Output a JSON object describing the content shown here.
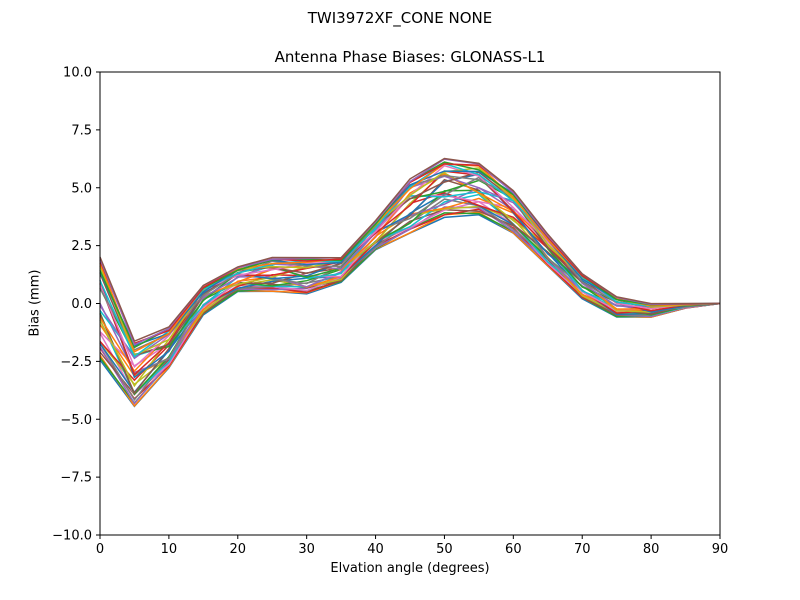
{
  "chart_data": {
    "type": "line",
    "suptitle": "TWI3972XF_CONE  NONE",
    "title": "Antenna Phase Biases: GLONASS-L1",
    "xlabel": "Elvation angle (degrees)",
    "ylabel": "Bias (mm)",
    "xlim": [
      0,
      90
    ],
    "ylim": [
      -10,
      10
    ],
    "xticks": [
      0,
      10,
      20,
      30,
      40,
      50,
      60,
      70,
      80,
      90
    ],
    "yticks": [
      -10.0,
      -7.5,
      -5.0,
      -2.5,
      0.0,
      2.5,
      5.0,
      7.5,
      10.0
    ],
    "ytick_labels": [
      "−10.0",
      "−7.5",
      "−5.0",
      "−2.5",
      "0.0",
      "2.5",
      "5.0",
      "7.5",
      "10.0"
    ],
    "xtick_labels": [
      "0",
      "10",
      "20",
      "30",
      "40",
      "50",
      "60",
      "70",
      "80",
      "90"
    ],
    "grid": false,
    "x": [
      0,
      5,
      10,
      15,
      20,
      25,
      30,
      35,
      40,
      45,
      50,
      55,
      60,
      65,
      70,
      75,
      80,
      85,
      90
    ],
    "series_count": 36,
    "colors": [
      "#1f77b4",
      "#ff7f0e",
      "#2ca02c",
      "#d62728",
      "#9467bd",
      "#8c564b",
      "#e377c2",
      "#7f7f7f",
      "#bcbd22",
      "#17becf"
    ],
    "envelope": {
      "upper": [
        2.1,
        -1.6,
        -1.0,
        0.8,
        1.6,
        2.0,
        2.0,
        2.0,
        3.6,
        5.4,
        6.3,
        6.1,
        4.9,
        3.0,
        1.3,
        0.3,
        0.0,
        0.0,
        0.0
      ],
      "lower": [
        -2.5,
        -4.5,
        -2.8,
        -0.5,
        0.5,
        0.5,
        0.4,
        0.9,
        2.3,
        3.0,
        3.7,
        3.8,
        3.0,
        1.6,
        0.2,
        -0.6,
        -0.6,
        -0.2,
        0.0
      ]
    }
  }
}
